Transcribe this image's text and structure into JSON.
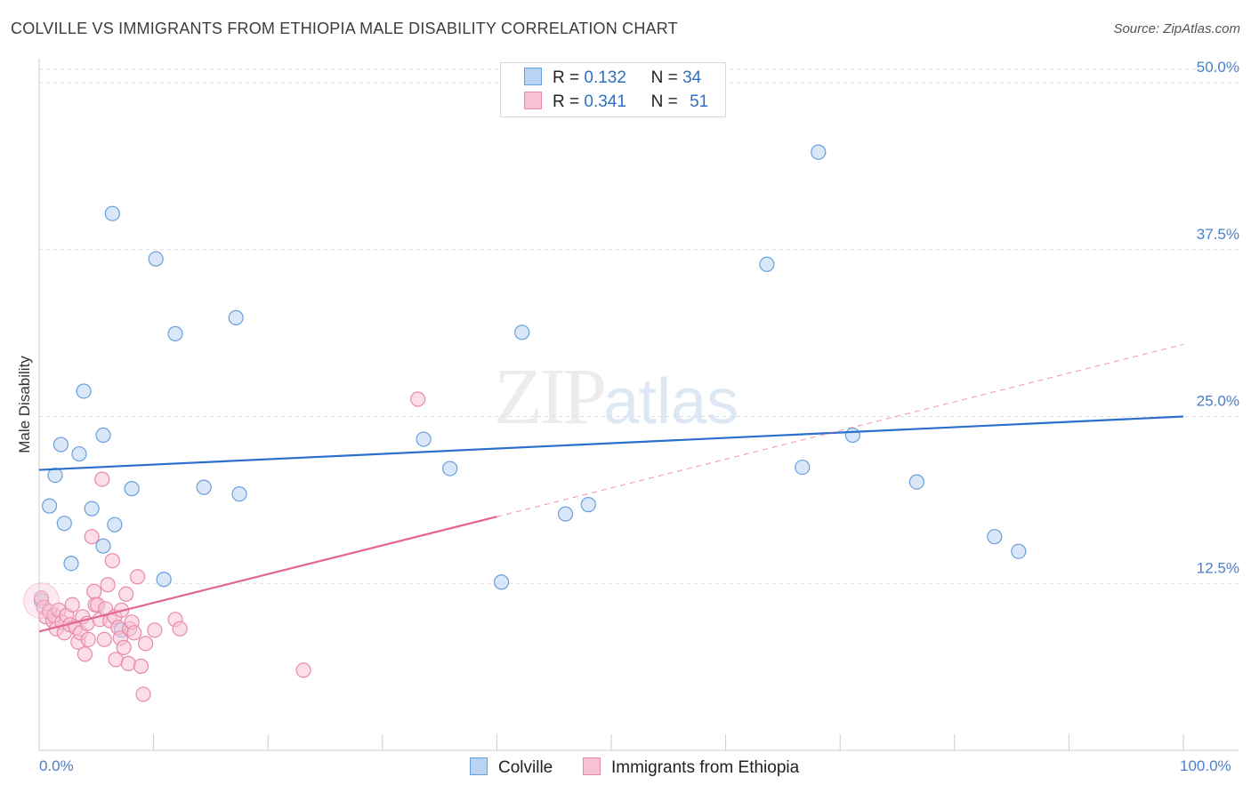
{
  "header": {
    "title": "COLVILLE VS IMMIGRANTS FROM ETHIOPIA MALE DISABILITY CORRELATION CHART",
    "source": "Source: ZipAtlas.com"
  },
  "watermark": {
    "zip": "ZIP",
    "atlas": "atlas"
  },
  "legend": {
    "series1": {
      "r_label": "R =",
      "r_value": "0.132",
      "n_label": "N =",
      "n_value": "34"
    },
    "series2": {
      "r_label": "R =",
      "r_value": "0.341",
      "n_label": "N =",
      "n_value": "51"
    }
  },
  "bottom_legend": {
    "series1": "Colville",
    "series2": "Immigrants from Ethiopia"
  },
  "colors": {
    "blue_fill": "#b9d3f3",
    "blue_stroke": "#6a9fdc",
    "blue_line": "#2a6fce",
    "pink_fill": "#f7c3d3",
    "pink_stroke": "#e889a8",
    "pink_line": "#e3668f",
    "grid": "#dddddd",
    "tick_text": "#4a80c8"
  },
  "chart_data": {
    "type": "scatter",
    "title": "COLVILLE VS IMMIGRANTS FROM ETHIOPIA MALE DISABILITY CORRELATION CHART",
    "xlabel": "",
    "ylabel": "Male Disability",
    "xlim": [
      0,
      100
    ],
    "ylim": [
      0,
      51
    ],
    "x_tick_labels": {
      "min": "0.0%",
      "max": "100.0%"
    },
    "y_ticks": [
      {
        "value": 12.5,
        "label": "12.5%"
      },
      {
        "value": 25.0,
        "label": "25.0%"
      },
      {
        "value": 37.5,
        "label": "37.5%"
      },
      {
        "value": 50.0,
        "label": "50.0%"
      }
    ],
    "series": [
      {
        "name": "Colville",
        "color": "blue",
        "points": [
          [
            0.2,
            11.2
          ],
          [
            0.9,
            18.3
          ],
          [
            1.4,
            20.6
          ],
          [
            1.9,
            22.9
          ],
          [
            2.2,
            17.0
          ],
          [
            2.8,
            14.0
          ],
          [
            3.5,
            22.2
          ],
          [
            3.9,
            26.9
          ],
          [
            4.6,
            18.1
          ],
          [
            5.6,
            15.3
          ],
          [
            5.6,
            23.6
          ],
          [
            6.4,
            40.2
          ],
          [
            6.6,
            16.9
          ],
          [
            7.2,
            9.0
          ],
          [
            8.1,
            19.6
          ],
          [
            10.2,
            36.8
          ],
          [
            10.9,
            12.8
          ],
          [
            11.9,
            31.2
          ],
          [
            14.4,
            19.7
          ],
          [
            17.2,
            32.4
          ],
          [
            17.5,
            19.2
          ],
          [
            33.6,
            23.3
          ],
          [
            35.9,
            21.1
          ],
          [
            40.4,
            12.6
          ],
          [
            42.2,
            31.3
          ],
          [
            46.0,
            17.7
          ],
          [
            48.0,
            18.4
          ],
          [
            63.6,
            36.4
          ],
          [
            66.7,
            21.2
          ],
          [
            68.1,
            44.8
          ],
          [
            71.1,
            23.6
          ],
          [
            76.7,
            20.1
          ],
          [
            83.5,
            16.0
          ],
          [
            85.6,
            14.9
          ]
        ],
        "trend": {
          "x": [
            0,
            100
          ],
          "y": [
            21.0,
            25.0
          ]
        }
      },
      {
        "name": "Immigrants from Ethiopia",
        "color": "pink",
        "points": [
          [
            0.2,
            11.4
          ],
          [
            0.4,
            10.7
          ],
          [
            0.6,
            10.0
          ],
          [
            0.9,
            10.4
          ],
          [
            1.2,
            9.7
          ],
          [
            1.3,
            10.1
          ],
          [
            1.5,
            9.1
          ],
          [
            1.7,
            10.5
          ],
          [
            2.0,
            9.6
          ],
          [
            2.2,
            8.8
          ],
          [
            2.4,
            10.1
          ],
          [
            2.7,
            9.4
          ],
          [
            2.9,
            10.9
          ],
          [
            3.2,
            9.2
          ],
          [
            3.4,
            8.1
          ],
          [
            3.6,
            8.8
          ],
          [
            3.8,
            10.0
          ],
          [
            4.0,
            7.2
          ],
          [
            4.2,
            9.5
          ],
          [
            4.3,
            8.3
          ],
          [
            4.6,
            16.0
          ],
          [
            4.8,
            11.9
          ],
          [
            4.9,
            10.9
          ],
          [
            5.1,
            10.9
          ],
          [
            5.3,
            9.8
          ],
          [
            5.5,
            20.3
          ],
          [
            5.7,
            8.3
          ],
          [
            5.8,
            10.6
          ],
          [
            6.0,
            12.4
          ],
          [
            6.2,
            9.7
          ],
          [
            6.4,
            14.2
          ],
          [
            6.6,
            10.0
          ],
          [
            6.7,
            6.8
          ],
          [
            6.9,
            9.2
          ],
          [
            7.1,
            8.4
          ],
          [
            7.2,
            10.5
          ],
          [
            7.4,
            7.7
          ],
          [
            7.6,
            11.7
          ],
          [
            7.8,
            6.5
          ],
          [
            7.9,
            9.1
          ],
          [
            8.1,
            9.6
          ],
          [
            8.3,
            8.8
          ],
          [
            8.6,
            13.0
          ],
          [
            8.9,
            6.3
          ],
          [
            9.1,
            4.2
          ],
          [
            9.3,
            8.0
          ],
          [
            10.1,
            9.0
          ],
          [
            11.9,
            9.8
          ],
          [
            23.1,
            6.0
          ],
          [
            33.1,
            26.3
          ],
          [
            12.3,
            9.1
          ]
        ],
        "trend": {
          "x": [
            0,
            40
          ],
          "y": [
            8.9,
            17.5
          ]
        },
        "trend_extension": {
          "x": [
            40,
            100
          ],
          "y": [
            17.5,
            30.4
          ]
        }
      }
    ]
  }
}
